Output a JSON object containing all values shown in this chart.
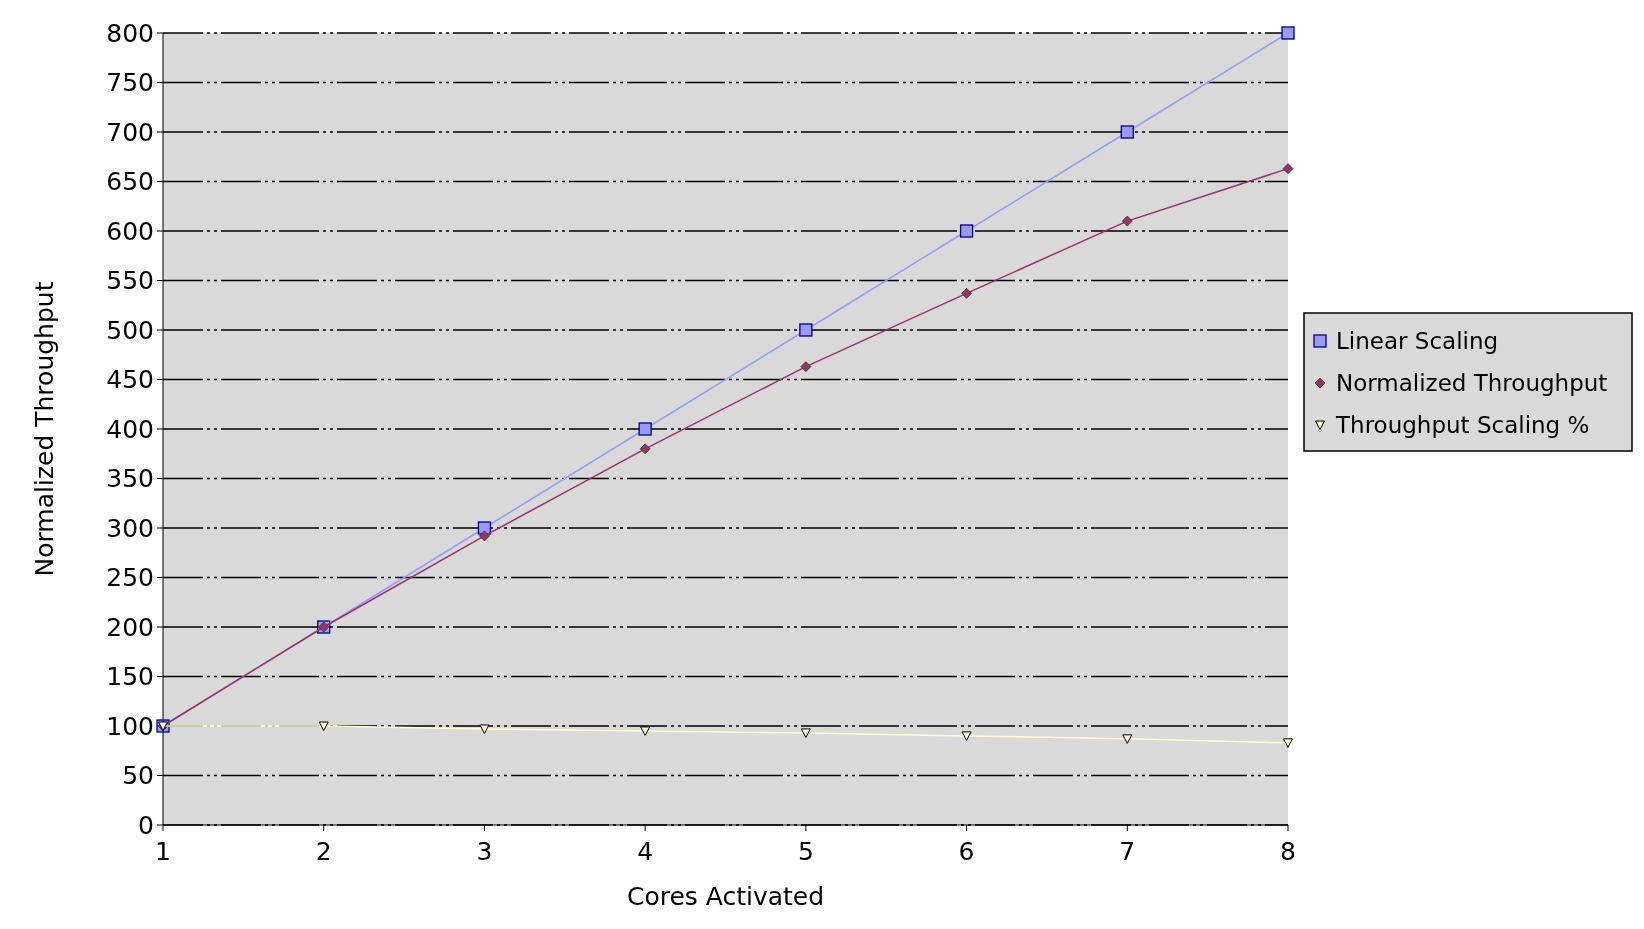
{
  "chart_data": {
    "type": "line",
    "xlabel": "Cores Activated",
    "ylabel": "Normalized Throughput",
    "x": [
      1,
      2,
      3,
      4,
      5,
      6,
      7,
      8
    ],
    "xlim": [
      1,
      8
    ],
    "xticks": [
      1,
      2,
      3,
      4,
      5,
      6,
      7,
      8
    ],
    "ylim": [
      0,
      800
    ],
    "yticks": [
      0,
      50,
      100,
      150,
      200,
      250,
      300,
      350,
      400,
      450,
      500,
      550,
      600,
      650,
      700,
      750,
      800
    ],
    "grid": "y",
    "legend": "right",
    "series": [
      {
        "name": "Linear Scaling",
        "color": "#9999ff",
        "marker": "square",
        "values": [
          100,
          200,
          300,
          400,
          500,
          600,
          700,
          800
        ]
      },
      {
        "name": "Normalized Throughput",
        "color": "#993366",
        "marker": "diamond",
        "values": [
          100,
          200,
          292,
          380,
          463,
          537,
          610,
          663
        ]
      },
      {
        "name": "Throughput Scaling %",
        "color": "#ffffcc",
        "marker": "triangle",
        "values": [
          100,
          100,
          97,
          95,
          93,
          90,
          87,
          83
        ]
      }
    ]
  }
}
